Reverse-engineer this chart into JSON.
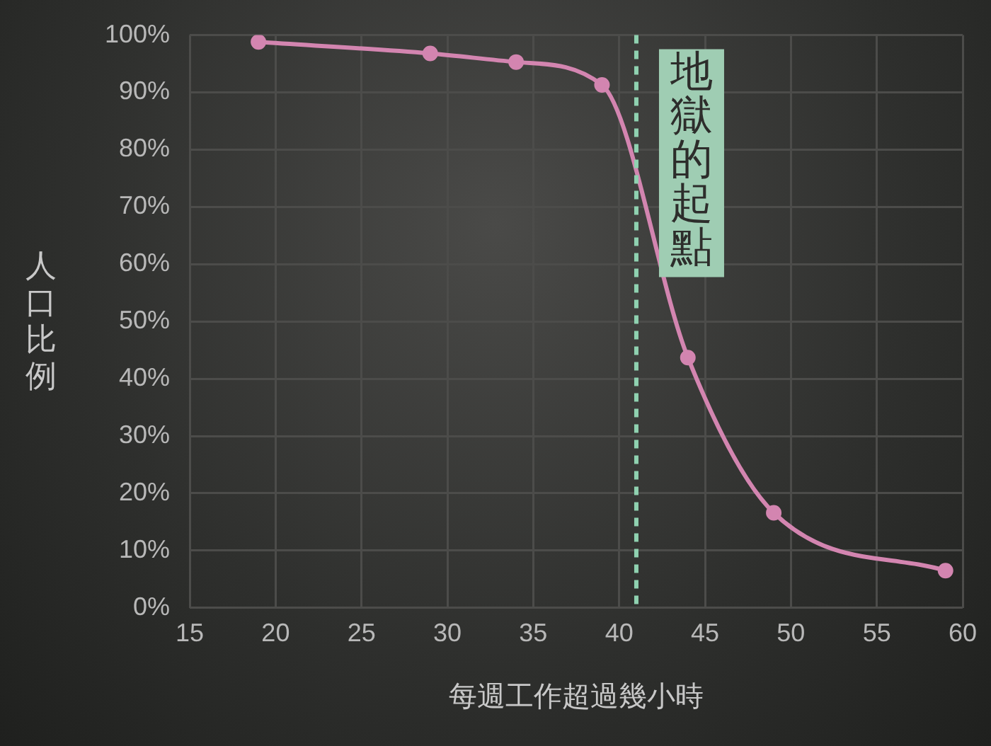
{
  "chart_data": {
    "type": "line",
    "xlabel": "每週工作超過幾小時",
    "ylabel": "人口比例",
    "x": [
      19,
      29,
      34,
      39,
      44,
      49,
      59
    ],
    "series": [
      {
        "color": "#d385b0",
        "values": [
          98.8,
          96.8,
          95.3,
          91.3,
          43.7,
          16.6,
          6.5
        ]
      }
    ],
    "xlim": [
      15,
      60
    ],
    "xticks": [
      15,
      20,
      25,
      30,
      35,
      40,
      45,
      50,
      55,
      60
    ],
    "ylim": [
      0,
      100
    ],
    "yticks": [
      {
        "value": 0,
        "label": "0%"
      },
      {
        "value": 10,
        "label": "10%"
      },
      {
        "value": 20,
        "label": "20%"
      },
      {
        "value": 30,
        "label": "30%"
      },
      {
        "value": 40,
        "label": "40%"
      },
      {
        "value": 50,
        "label": "50%"
      },
      {
        "value": 60,
        "label": "60%"
      },
      {
        "value": 70,
        "label": "70%"
      },
      {
        "value": 80,
        "label": "80%"
      },
      {
        "value": 90,
        "label": "90%"
      },
      {
        "value": 100,
        "label": "100%"
      }
    ],
    "ref_lines": [
      {
        "axis": "x",
        "value": 41,
        "label": "地獄的起點",
        "color": "#8fd1b0",
        "line_style": "dashed"
      }
    ],
    "grid": true,
    "legend": false,
    "marker": "circle",
    "line_style": "solid"
  }
}
